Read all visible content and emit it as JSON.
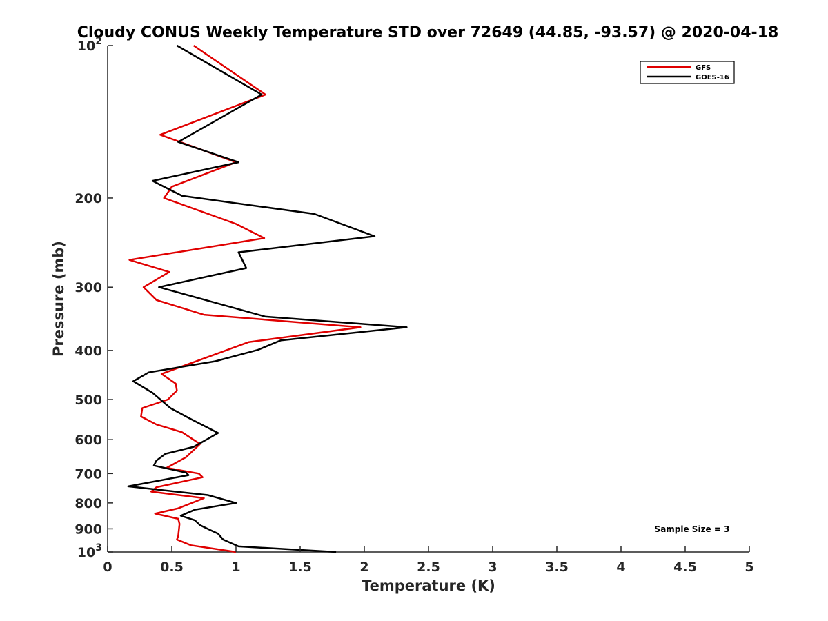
{
  "chart_data": {
    "type": "line",
    "title": "Cloudy CONUS Weekly Temperature STD over 72649 (44.85, -93.57) @ 2020-04-18",
    "xlabel": "Temperature (K)",
    "ylabel": "Pressure (mb)",
    "xlim": [
      0,
      5
    ],
    "ylim": [
      100,
      1000
    ],
    "y_scale": "log",
    "y_reversed": true,
    "grid": false,
    "x_ticks": [
      {
        "value": 0,
        "label": "0"
      },
      {
        "value": 0.5,
        "label": "0.5"
      },
      {
        "value": 1,
        "label": "1"
      },
      {
        "value": 1.5,
        "label": "1.5"
      },
      {
        "value": 2,
        "label": "2"
      },
      {
        "value": 2.5,
        "label": "2.5"
      },
      {
        "value": 3,
        "label": "3"
      },
      {
        "value": 3.5,
        "label": "3.5"
      },
      {
        "value": 4,
        "label": "4"
      },
      {
        "value": 4.5,
        "label": "4.5"
      },
      {
        "value": 5,
        "label": "5"
      }
    ],
    "y_ticks": [
      {
        "value": 100,
        "label": "10",
        "exp": "2"
      },
      {
        "value": 200,
        "label": "200"
      },
      {
        "value": 300,
        "label": "300"
      },
      {
        "value": 400,
        "label": "400"
      },
      {
        "value": 500,
        "label": "500"
      },
      {
        "value": 600,
        "label": "600"
      },
      {
        "value": 700,
        "label": "700"
      },
      {
        "value": 800,
        "label": "800"
      },
      {
        "value": 900,
        "label": "900"
      },
      {
        "value": 1000,
        "label": "10",
        "exp": "3"
      }
    ],
    "legend_position": "top-right",
    "annotation": "Sample Size = 3",
    "series": [
      {
        "name": "GFS",
        "color": "#e00000",
        "points": [
          [
            0.67,
            100
          ],
          [
            1.23,
            125
          ],
          [
            0.41,
            150
          ],
          [
            1.0,
            170
          ],
          [
            0.5,
            190
          ],
          [
            0.44,
            200
          ],
          [
            1.0,
            225
          ],
          [
            1.22,
            240
          ],
          [
            0.17,
            265
          ],
          [
            0.48,
            280
          ],
          [
            0.28,
            300
          ],
          [
            0.38,
            318
          ],
          [
            0.75,
            340
          ],
          [
            1.97,
            360
          ],
          [
            1.1,
            385
          ],
          [
            0.42,
            445
          ],
          [
            0.53,
            465
          ],
          [
            0.54,
            480
          ],
          [
            0.47,
            500
          ],
          [
            0.27,
            520
          ],
          [
            0.26,
            540
          ],
          [
            0.38,
            560
          ],
          [
            0.58,
            580
          ],
          [
            0.72,
            612
          ],
          [
            0.61,
            650
          ],
          [
            0.46,
            682
          ],
          [
            0.71,
            700
          ],
          [
            0.74,
            712
          ],
          [
            0.38,
            745
          ],
          [
            0.34,
            760
          ],
          [
            0.75,
            783
          ],
          [
            0.55,
            820
          ],
          [
            0.37,
            840
          ],
          [
            0.55,
            860
          ],
          [
            0.56,
            880
          ],
          [
            0.55,
            930
          ],
          [
            0.54,
            945
          ],
          [
            0.65,
            970
          ],
          [
            1.0,
            1000
          ]
        ]
      },
      {
        "name": "GOES-16",
        "color": "#000000",
        "points": [
          [
            0.54,
            100
          ],
          [
            1.2,
            125
          ],
          [
            0.55,
            155
          ],
          [
            1.02,
            170
          ],
          [
            0.35,
            185
          ],
          [
            0.58,
            198
          ],
          [
            1.61,
            215
          ],
          [
            2.08,
            238
          ],
          [
            1.02,
            256
          ],
          [
            1.08,
            275
          ],
          [
            0.4,
            300
          ],
          [
            1.23,
            343
          ],
          [
            2.33,
            360
          ],
          [
            1.35,
            382
          ],
          [
            1.17,
            399
          ],
          [
            0.84,
            420
          ],
          [
            0.32,
            442
          ],
          [
            0.2,
            460
          ],
          [
            0.35,
            485
          ],
          [
            0.49,
            520
          ],
          [
            0.64,
            545
          ],
          [
            0.86,
            582
          ],
          [
            0.78,
            598
          ],
          [
            0.67,
            620
          ],
          [
            0.45,
            640
          ],
          [
            0.38,
            660
          ],
          [
            0.36,
            675
          ],
          [
            0.61,
            697
          ],
          [
            0.63,
            705
          ],
          [
            0.16,
            742
          ],
          [
            0.78,
            772
          ],
          [
            1.0,
            800
          ],
          [
            0.68,
            825
          ],
          [
            0.57,
            848
          ],
          [
            0.68,
            866
          ],
          [
            0.72,
            885
          ],
          [
            0.8,
            905
          ],
          [
            0.86,
            920
          ],
          [
            0.9,
            945
          ],
          [
            1.02,
            975
          ],
          [
            1.78,
            1000
          ]
        ]
      }
    ]
  }
}
